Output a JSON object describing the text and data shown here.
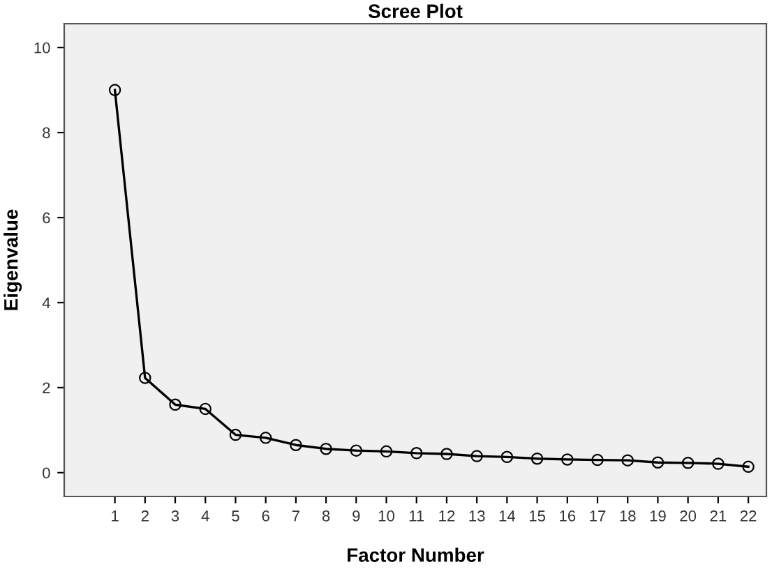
{
  "chart_data": {
    "type": "line",
    "title": "Scree Plot",
    "xlabel": "Factor Number",
    "ylabel": "Eigenvalue",
    "categories": [
      "1",
      "2",
      "3",
      "4",
      "5",
      "6",
      "7",
      "8",
      "9",
      "10",
      "11",
      "12",
      "13",
      "14",
      "15",
      "16",
      "17",
      "18",
      "19",
      "20",
      "21",
      "22"
    ],
    "series": [
      {
        "color": "#000000",
        "values": [
          9.0,
          2.23,
          1.6,
          1.5,
          0.89,
          0.82,
          0.65,
          0.56,
          0.52,
          0.5,
          0.46,
          0.44,
          0.39,
          0.37,
          0.33,
          0.31,
          0.3,
          0.29,
          0.24,
          0.23,
          0.21,
          0.14
        ]
      }
    ],
    "ylim": [
      -0.56,
      10.56
    ],
    "yticks": [
      0,
      2,
      4,
      6,
      8,
      10
    ],
    "grid": false,
    "legend": false,
    "marker": "circle",
    "line_style": "solid"
  }
}
